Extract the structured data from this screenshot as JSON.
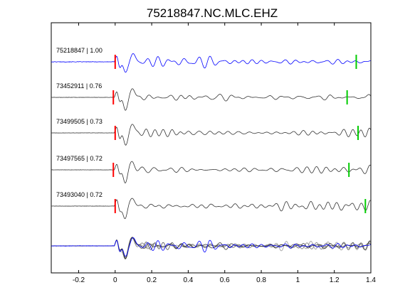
{
  "chart_data": {
    "type": "line",
    "title": "75218847.NC.MLC.EHZ",
    "xlabel": "",
    "ylabel": "",
    "xlim": [
      -0.35,
      1.4
    ],
    "x_ticks": [
      -0.2,
      0,
      0.2,
      0.4,
      0.6,
      0.8,
      1,
      1.2,
      1.4
    ],
    "x_tick_labels": [
      "-0.2",
      "0",
      "0.2",
      "0.4",
      "0.6",
      "0.8",
      "1",
      "1.2",
      "1.4"
    ],
    "grid": false,
    "series": [
      {
        "label": "75218847 | 1.00",
        "color": "#0000ff",
        "p_pick": 0.0,
        "s_pick": 1.32
      },
      {
        "label": "73452911 | 0.76",
        "color": "#333333",
        "p_pick": -0.01,
        "s_pick": 1.27
      },
      {
        "label": "73499505 | 0.73",
        "color": "#333333",
        "p_pick": 0.0,
        "s_pick": 1.33
      },
      {
        "label": "73497565 | 0.72",
        "color": "#333333",
        "p_pick": -0.01,
        "s_pick": 1.28
      },
      {
        "label": "73493040 | 0.72",
        "color": "#333333",
        "p_pick": 0.0,
        "s_pick": 1.37
      }
    ],
    "overlay": {
      "colors": [
        "#0000ff",
        "#333333",
        "#555555",
        "#777777",
        "#999999"
      ]
    },
    "p_pick_color": "#ff0000",
    "s_pick_color": "#00cc00"
  }
}
